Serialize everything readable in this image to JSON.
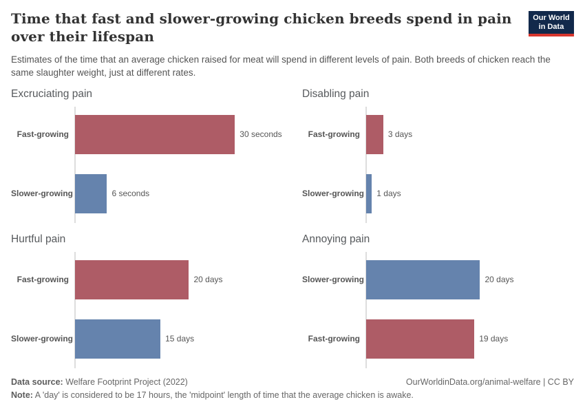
{
  "header": {
    "title": "Time that fast and slower-growing chicken breeds spend in pain over their lifespan",
    "subtitle": "Estimates of the time that an average chicken raised for meat will spend in different levels of pain. Both breeds of chicken reach the same slaughter weight, just at different rates.",
    "logo": {
      "line1": "Our World",
      "line2": "in Data"
    }
  },
  "colors": {
    "fast": "#ae5c66",
    "slower": "#6583ad",
    "axis": "#dddddd",
    "logo_bg": "#12294b",
    "logo_stripe": "#d7362e"
  },
  "chart_data": {
    "type": "bar",
    "orientation": "horizontal",
    "grid": "off",
    "legend": "none",
    "panels": [
      {
        "title": "Excruciating pain",
        "unit": "seconds",
        "xmax": 39,
        "bars": [
          {
            "label": "Fast-growing",
            "breed": "fast",
            "value": 30,
            "value_label": "30 seconds"
          },
          {
            "label": "Slower-growing",
            "breed": "slower",
            "value": 6,
            "value_label": "6 seconds"
          }
        ]
      },
      {
        "title": "Disabling pain",
        "unit": "days",
        "xmax": 36.5,
        "bars": [
          {
            "label": "Fast-growing",
            "breed": "fast",
            "value": 3,
            "value_label": "3 days"
          },
          {
            "label": "Slower-growing",
            "breed": "slower",
            "value": 1,
            "value_label": "1 days"
          }
        ]
      },
      {
        "title": "Hurtful pain",
        "unit": "days",
        "xmax": 36.5,
        "bars": [
          {
            "label": "Fast-growing",
            "breed": "fast",
            "value": 20,
            "value_label": "20 days"
          },
          {
            "label": "Slower-growing",
            "breed": "slower",
            "value": 15,
            "value_label": "15 days"
          }
        ]
      },
      {
        "title": "Annoying pain",
        "unit": "days",
        "xmax": 36.5,
        "bars": [
          {
            "label": "Slower-growing",
            "breed": "slower",
            "value": 20,
            "value_label": "20 days"
          },
          {
            "label": "Fast-growing",
            "breed": "fast",
            "value": 19,
            "value_label": "19 days"
          }
        ]
      }
    ]
  },
  "footer": {
    "datasource_label": "Data source:",
    "datasource_value": " Welfare Footprint Project (2022)",
    "credit": "OurWorldinData.org/animal-welfare | CC BY",
    "note_label": "Note:",
    "note_value": " A 'day' is considered to be 17 hours, the 'midpoint' length of time that the average chicken is awake."
  }
}
